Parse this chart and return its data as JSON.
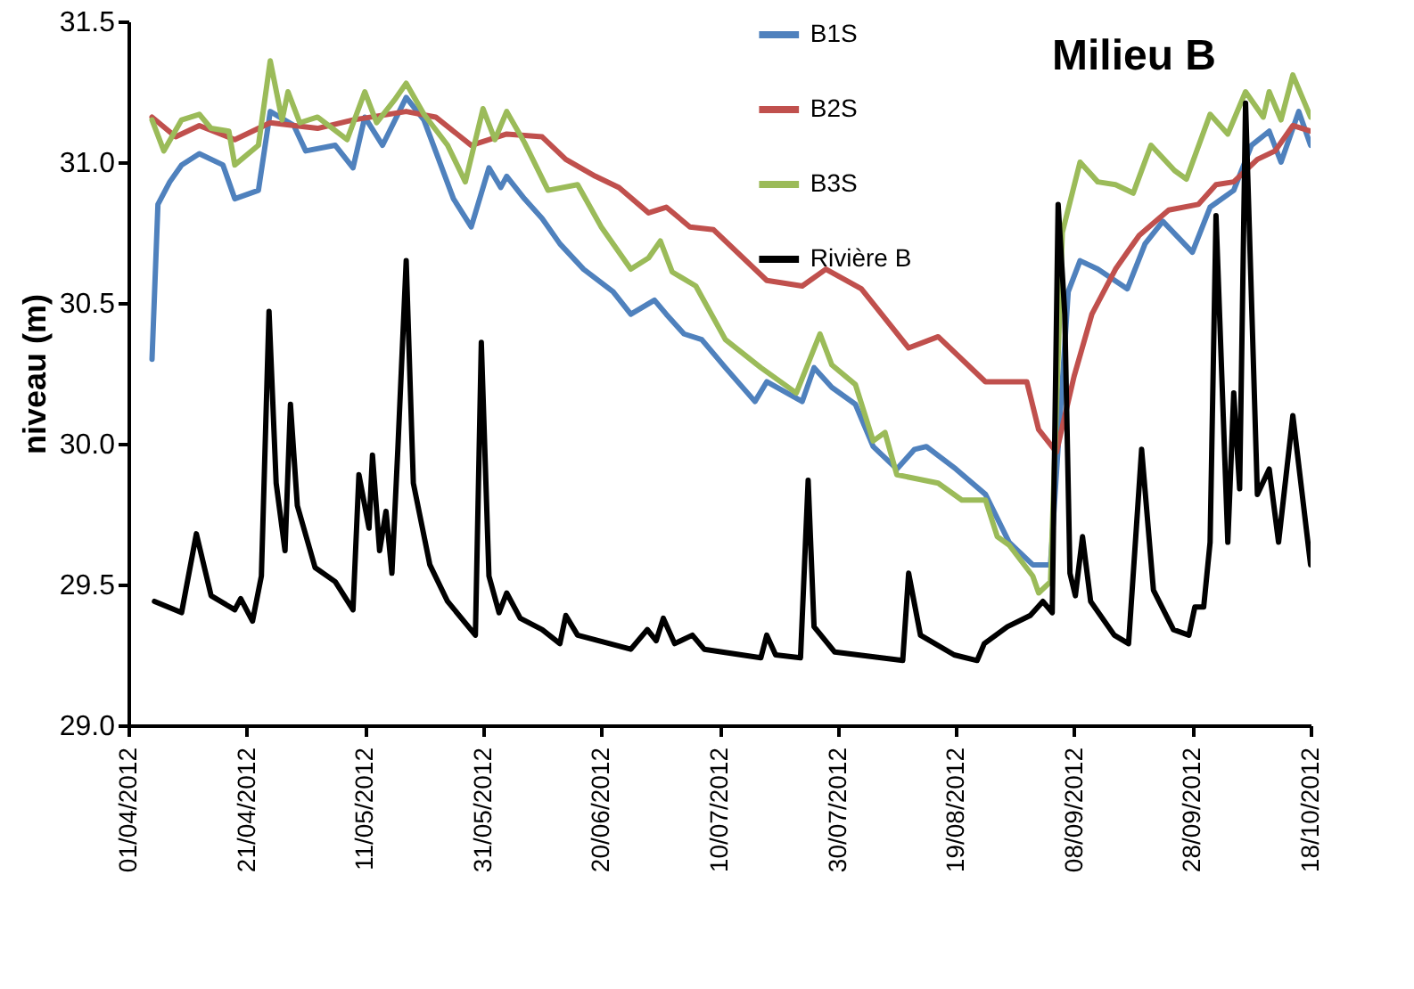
{
  "chart_data": {
    "type": "line",
    "title": "Milieu B",
    "ylabel": "niveau (m)",
    "xlim": [
      "2012-04-01",
      "2012-10-18"
    ],
    "xticks": [
      {
        "value": "2012-04-01",
        "label": "01/04/2012"
      },
      {
        "value": "2012-04-21",
        "label": "21/04/2012"
      },
      {
        "value": "2012-05-11",
        "label": "11/05/2012"
      },
      {
        "value": "2012-05-31",
        "label": "31/05/2012"
      },
      {
        "value": "2012-06-20",
        "label": "20/06/2012"
      },
      {
        "value": "2012-07-10",
        "label": "10/07/2012"
      },
      {
        "value": "2012-07-30",
        "label": "30/07/2012"
      },
      {
        "value": "2012-08-19",
        "label": "19/08/2012"
      },
      {
        "value": "2012-09-08",
        "label": "08/09/2012"
      },
      {
        "value": "2012-09-28",
        "label": "28/09/2012"
      },
      {
        "value": "2012-10-18",
        "label": "18/10/2012"
      }
    ],
    "ylim": [
      29,
      31.5
    ],
    "yticks": [
      {
        "value": 29,
        "label": "29.0"
      },
      {
        "value": 29.5,
        "label": "29.5"
      },
      {
        "value": 30,
        "label": "30.0"
      },
      {
        "value": 30.5,
        "label": "30.5"
      },
      {
        "value": 31,
        "label": "31.0"
      },
      {
        "value": 31.5,
        "label": "31.5"
      }
    ],
    "grid": false,
    "legend": "top right",
    "marker": "none",
    "line_style": "solid",
    "series": [
      {
        "name": "B1S",
        "color": "#4f81bd",
        "x": [
          "2012-04-05",
          "2012-04-06",
          "2012-04-08",
          "2012-04-10",
          "2012-04-13",
          "2012-04-17",
          "2012-04-19",
          "2012-04-23",
          "2012-04-25",
          "2012-04-29",
          "2012-05-01",
          "2012-05-06",
          "2012-05-09",
          "2012-05-11",
          "2012-05-14",
          "2012-05-18",
          "2012-05-21",
          "2012-05-26",
          "2012-05-29",
          "2012-06-01",
          "2012-06-03",
          "2012-06-04",
          "2012-06-07",
          "2012-06-10",
          "2012-06-13",
          "2012-06-17",
          "2012-06-22",
          "2012-06-25",
          "2012-06-29",
          "2012-07-01",
          "2012-07-04",
          "2012-07-07",
          "2012-07-11",
          "2012-07-16",
          "2012-07-18",
          "2012-07-24",
          "2012-07-26",
          "2012-07-29",
          "2012-08-02",
          "2012-08-05",
          "2012-08-09",
          "2012-08-12",
          "2012-08-14",
          "2012-08-19",
          "2012-08-24",
          "2012-08-28",
          "2012-09-01",
          "2012-09-04",
          "2012-09-07",
          "2012-09-09",
          "2012-09-12",
          "2012-09-17",
          "2012-09-20",
          "2012-09-23",
          "2012-09-28",
          "2012-10-01",
          "2012-10-05",
          "2012-10-08",
          "2012-10-11",
          "2012-10-13",
          "2012-10-16",
          "2012-10-18"
        ],
        "values": [
          30.3,
          30.85,
          30.93,
          30.99,
          31.03,
          30.99,
          30.87,
          30.9,
          31.18,
          31.13,
          31.04,
          31.06,
          30.98,
          31.16,
          31.06,
          31.23,
          31.15,
          30.87,
          30.77,
          30.98,
          30.91,
          30.95,
          30.87,
          30.8,
          30.71,
          30.62,
          30.54,
          30.46,
          30.51,
          30.46,
          30.39,
          30.37,
          30.27,
          30.15,
          30.22,
          30.15,
          30.27,
          30.2,
          30.14,
          29.99,
          29.91,
          29.98,
          29.99,
          29.91,
          29.82,
          29.65,
          29.57,
          29.57,
          30.54,
          30.65,
          30.62,
          30.55,
          30.71,
          30.79,
          30.68,
          30.84,
          30.9,
          31.06,
          31.11,
          31.0,
          31.18,
          31.06
        ]
      },
      {
        "name": "B2S",
        "color": "#c0504d",
        "x": [
          "2012-04-05",
          "2012-04-09",
          "2012-04-13",
          "2012-04-19",
          "2012-04-25",
          "2012-05-03",
          "2012-05-09",
          "2012-05-18",
          "2012-05-23",
          "2012-05-29",
          "2012-06-04",
          "2012-06-10",
          "2012-06-14",
          "2012-06-19",
          "2012-06-23",
          "2012-06-28",
          "2012-07-01",
          "2012-07-05",
          "2012-07-09",
          "2012-07-18",
          "2012-07-24",
          "2012-07-28",
          "2012-08-03",
          "2012-08-11",
          "2012-08-16",
          "2012-08-24",
          "2012-08-31",
          "2012-09-02",
          "2012-09-05",
          "2012-09-08",
          "2012-09-11",
          "2012-09-15",
          "2012-09-19",
          "2012-09-24",
          "2012-09-29",
          "2012-10-02",
          "2012-10-05",
          "2012-10-09",
          "2012-10-12",
          "2012-10-15",
          "2012-10-18"
        ],
        "values": [
          31.16,
          31.09,
          31.13,
          31.08,
          31.14,
          31.12,
          31.15,
          31.18,
          31.16,
          31.06,
          31.1,
          31.09,
          31.01,
          30.95,
          30.91,
          30.82,
          30.84,
          30.77,
          30.76,
          30.58,
          30.56,
          30.62,
          30.55,
          30.34,
          30.38,
          30.22,
          30.22,
          30.05,
          29.97,
          30.24,
          30.46,
          30.62,
          30.74,
          30.83,
          30.85,
          30.92,
          30.93,
          31.01,
          31.04,
          31.13,
          31.11
        ]
      },
      {
        "name": "B3S",
        "color": "#9bbb59",
        "x": [
          "2012-04-05",
          "2012-04-07",
          "2012-04-10",
          "2012-04-13",
          "2012-04-15",
          "2012-04-18",
          "2012-04-19",
          "2012-04-23",
          "2012-04-25",
          "2012-04-27",
          "2012-04-28",
          "2012-04-30",
          "2012-05-03",
          "2012-05-08",
          "2012-05-11",
          "2012-05-13",
          "2012-05-16",
          "2012-05-18",
          "2012-05-21",
          "2012-05-25",
          "2012-05-28",
          "2012-05-31",
          "2012-06-02",
          "2012-06-04",
          "2012-06-07",
          "2012-06-11",
          "2012-06-16",
          "2012-06-20",
          "2012-06-25",
          "2012-06-28",
          "2012-06-30",
          "2012-07-02",
          "2012-07-06",
          "2012-07-11",
          "2012-07-17",
          "2012-07-23",
          "2012-07-27",
          "2012-07-29",
          "2012-08-02",
          "2012-08-05",
          "2012-08-07",
          "2012-08-09",
          "2012-08-16",
          "2012-08-20",
          "2012-08-24",
          "2012-08-26",
          "2012-08-28",
          "2012-09-01",
          "2012-09-02",
          "2012-09-04",
          "2012-09-06",
          "2012-09-09",
          "2012-09-12",
          "2012-09-15",
          "2012-09-18",
          "2012-09-21",
          "2012-09-25",
          "2012-09-27",
          "2012-10-01",
          "2012-10-04",
          "2012-10-07",
          "2012-10-10",
          "2012-10-11",
          "2012-10-13",
          "2012-10-15",
          "2012-10-18"
        ],
        "values": [
          31.15,
          31.04,
          31.15,
          31.17,
          31.12,
          31.11,
          30.99,
          31.06,
          31.36,
          31.15,
          31.25,
          31.14,
          31.16,
          31.08,
          31.25,
          31.14,
          31.22,
          31.28,
          31.17,
          31.06,
          30.93,
          31.19,
          31.08,
          31.18,
          31.07,
          30.9,
          30.92,
          30.77,
          30.62,
          30.66,
          30.72,
          30.61,
          30.56,
          30.37,
          30.27,
          30.18,
          30.39,
          30.28,
          30.21,
          30.01,
          30.04,
          29.89,
          29.86,
          29.8,
          29.8,
          29.67,
          29.64,
          29.53,
          29.47,
          29.51,
          30.75,
          31.0,
          30.93,
          30.92,
          30.89,
          31.06,
          30.97,
          30.94,
          31.17,
          31.1,
          31.25,
          31.16,
          31.25,
          31.15,
          31.31,
          31.16
        ]
      },
      {
        "name": "Rivière B",
        "color": "#000000",
        "x": [
          "2012-04-05T10:00",
          "2012-04-10",
          "2012-04-12T12:00",
          "2012-04-15",
          "2012-04-19",
          "2012-04-20",
          "2012-04-22",
          "2012-04-23T12:00",
          "2012-04-24T19:00",
          "2012-04-26",
          "2012-04-27T12:00",
          "2012-04-28T10:00",
          "2012-04-29T14:00",
          "2012-05-02T14:00",
          "2012-05-06",
          "2012-05-09",
          "2012-05-10",
          "2012-05-11T17:00",
          "2012-05-12T07:00",
          "2012-05-13T12:00",
          "2012-05-14T14:00",
          "2012-05-15T14:00",
          "2012-05-16T14:00",
          "2012-05-18",
          "2012-05-19T05:00",
          "2012-05-22",
          "2012-05-25",
          "2012-05-29T17:00",
          "2012-05-30T17:00",
          "2012-06-01",
          "2012-06-02T17:00",
          "2012-06-04",
          "2012-06-06T07:00",
          "2012-06-10",
          "2012-06-13",
          "2012-06-14",
          "2012-06-16",
          "2012-06-25",
          "2012-06-27T19:00",
          "2012-06-29T07:00",
          "2012-06-30T12:00",
          "2012-07-02T10:00",
          "2012-07-05T10:00",
          "2012-07-07T10:00",
          "2012-07-17",
          "2012-07-18",
          "2012-07-19T12:00",
          "2012-07-23T17:00",
          "2012-07-25",
          "2012-07-26",
          "2012-07-29T12:00",
          "2012-08-10",
          "2012-08-11",
          "2012-08-13",
          "2012-08-18T17:00",
          "2012-08-22T14:00",
          "2012-08-23T19:00",
          "2012-08-27T17:00",
          "2012-08-31T14:00",
          "2012-09-02T17:00",
          "2012-09-04T07:00",
          "2012-09-05T07:00",
          "2012-09-06T10:00",
          "2012-09-07T07:00",
          "2012-09-08T05:00",
          "2012-09-09T10:00",
          "2012-09-10T19:00",
          "2012-09-14T19:00",
          "2012-09-17T05:00",
          "2012-09-19T10:00",
          "2012-09-21T10:00",
          "2012-09-24T19:00",
          "2012-09-27T10:00",
          "2012-09-28T10:00",
          "2012-09-29T22:00",
          "2012-10-01",
          "2012-10-02",
          "2012-10-04",
          "2012-10-05",
          "2012-10-06",
          "2012-10-07",
          "2012-10-09",
          "2012-10-11",
          "2012-10-12T14:00",
          "2012-10-15",
          "2012-10-18"
        ],
        "values": [
          29.44,
          29.4,
          29.68,
          29.46,
          29.41,
          29.45,
          29.37,
          29.53,
          30.47,
          29.86,
          29.62,
          30.14,
          29.78,
          29.56,
          29.51,
          29.41,
          29.89,
          29.7,
          29.96,
          29.62,
          29.76,
          29.54,
          29.98,
          30.65,
          29.86,
          29.57,
          29.44,
          29.32,
          30.36,
          29.53,
          29.4,
          29.47,
          29.38,
          29.34,
          29.29,
          29.39,
          29.32,
          29.27,
          29.34,
          29.3,
          29.38,
          29.29,
          29.32,
          29.27,
          29.24,
          29.32,
          29.25,
          29.24,
          29.87,
          29.35,
          29.26,
          29.23,
          29.54,
          29.32,
          29.25,
          29.23,
          29.29,
          29.35,
          29.39,
          29.44,
          29.4,
          30.85,
          30.46,
          29.54,
          29.46,
          29.67,
          29.44,
          29.32,
          29.29,
          29.98,
          29.48,
          29.34,
          29.32,
          29.42,
          29.42,
          29.65,
          30.81,
          29.65,
          30.18,
          29.84,
          31.21,
          29.82,
          29.91,
          29.65,
          30.1,
          29.57
        ]
      }
    ]
  }
}
